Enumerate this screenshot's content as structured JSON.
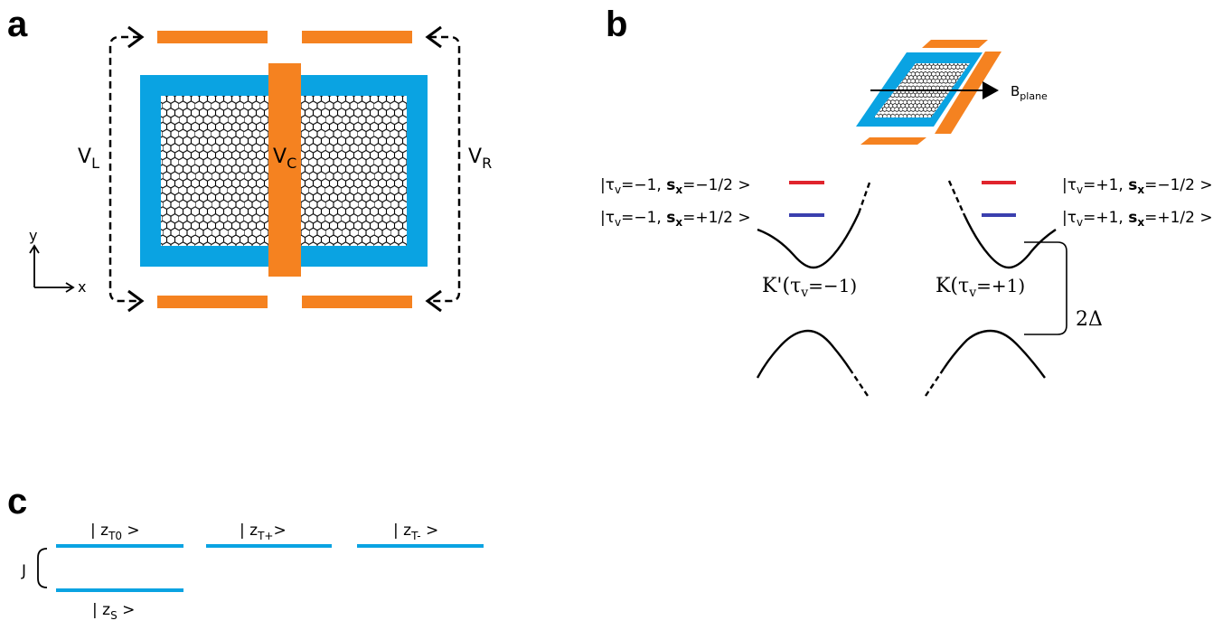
{
  "panel_a": {
    "letter": "a",
    "labels": {
      "vl_main": "V",
      "vl_sub": "L",
      "vc_main": "V",
      "vc_sub": "C",
      "vr_main": "V",
      "vr_sub": "R",
      "axis_y": "y",
      "axis_x": "x"
    }
  },
  "panel_b": {
    "letter": "b",
    "bfield_main": "B",
    "bfield_sub": "plane",
    "kprime_label": "K'(τ",
    "k_label": "K(τ",
    "kprime_sub": "v",
    "k_sub": "v",
    "kprime_val": "=−1)",
    "k_val": "=+1)",
    "gap_label": "2Δ",
    "kets": {
      "left_top": {
        "prefix": "|τ",
        "sub": "v",
        "mid": "=−1, ",
        "s": "s",
        "s_sub": "x",
        "val": "=−1/2 >"
      },
      "left_bottom": {
        "prefix": "|τ",
        "sub": "v",
        "mid": "=−1, ",
        "s": "s",
        "s_sub": "x",
        "val": "=+1/2 >"
      },
      "right_top": {
        "prefix": "|τ",
        "sub": "v",
        "mid": "=+1, ",
        "s": "s",
        "s_sub": "x",
        "val": "=−1/2 >"
      },
      "right_bottom": {
        "prefix": "|τ",
        "sub": "v",
        "mid": "=+1, ",
        "s": "s",
        "s_sub": "x",
        "val": "=+1/2 >"
      }
    },
    "colors": {
      "spin_down": "#e0242c",
      "spin_up": "#3a3fae"
    }
  },
  "panel_c": {
    "letter": "c",
    "j_label": "J",
    "levels": [
      {
        "prefix": "| z",
        "sub": "T0",
        "suffix": " >"
      },
      {
        "prefix": "| z",
        "sub": "T+",
        "suffix": ">"
      },
      {
        "prefix": "| z",
        "sub": "T-",
        "suffix": " >"
      },
      {
        "prefix": "| z",
        "sub": "S",
        "suffix": " >"
      }
    ]
  },
  "colors": {
    "substrate": "#0aa3e2",
    "gate": "#f58220",
    "line": "#000000",
    "level": "#0aa3e2"
  }
}
